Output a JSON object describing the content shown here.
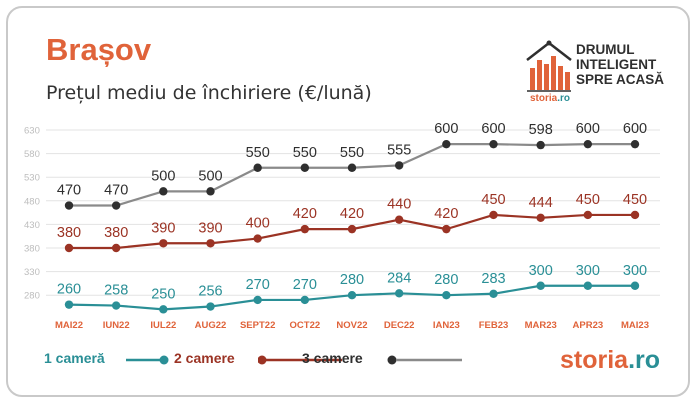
{
  "header": {
    "title": "Brașov",
    "subtitle": "Prețul mediu de închiriere (€/lună)"
  },
  "logo": {
    "lines": [
      "DRUMUL",
      "INTELIGENT",
      "SPRE ACASĂ"
    ],
    "brand_name": "storia",
    "brand_suffix": ".ro"
  },
  "footer_brand": {
    "name": "storia",
    "suffix": ".ro"
  },
  "colors": {
    "accent": "#e0633a",
    "teal": "#2a8f96",
    "red": "#9b3324",
    "gray": "#8a8a8a",
    "dark": "#2f2f2f",
    "axis_text": "#bdbdbd",
    "grid": "#e3e3e3"
  },
  "chart_data": {
    "type": "line",
    "categories": [
      "MAI22",
      "IUN22",
      "IUL22",
      "AUG22",
      "SEPT22",
      "OCT22",
      "NOV22",
      "DEC22",
      "IAN23",
      "FEB23",
      "MAR23",
      "APR23",
      "MAI23"
    ],
    "y_ticks": [
      280,
      330,
      380,
      430,
      480,
      530,
      580,
      630
    ],
    "ylim": [
      255,
      630
    ],
    "grid": true,
    "legend_position": "bottom-left",
    "series": [
      {
        "name": "1 cameră",
        "color": "#2a8f96",
        "label_color": "#2a8f96",
        "marker_color": "#2a8f96",
        "values": [
          260,
          258,
          250,
          256,
          270,
          270,
          280,
          284,
          280,
          283,
          300,
          300,
          300
        ]
      },
      {
        "name": "2 camere",
        "color": "#9b3324",
        "label_color": "#9b3324",
        "marker_color": "#9b3324",
        "values": [
          380,
          380,
          390,
          390,
          400,
          420,
          420,
          440,
          420,
          450,
          444,
          450,
          450
        ]
      },
      {
        "name": "3 camere",
        "color": "#8a8a8a",
        "label_color": "#2f2f2f",
        "marker_color": "#2f2f2f",
        "values": [
          470,
          470,
          500,
          500,
          550,
          550,
          550,
          555,
          600,
          600,
          598,
          600,
          600
        ]
      }
    ]
  }
}
